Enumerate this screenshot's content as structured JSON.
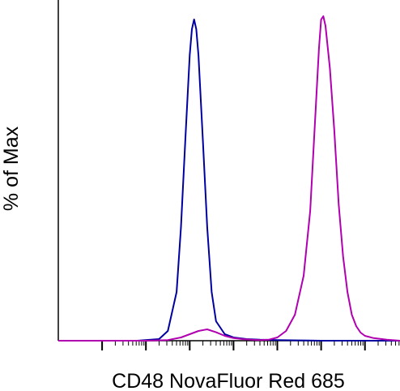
{
  "chart_data": {
    "type": "line",
    "title": "",
    "xlabel": "CD48 NovaFluor Red 685",
    "ylabel": "% of Max",
    "xscale": "log",
    "xlim": [
      -3,
      4.8
    ],
    "ylim": [
      0,
      100
    ],
    "grid": false,
    "legend": "none",
    "series": [
      {
        "color": "#0000a0",
        "x": [
          -3,
          -1.2,
          -0.7,
          -0.5,
          -0.3,
          -0.2,
          -0.1,
          0,
          0.05,
          0.1,
          0.15,
          0.2,
          0.3,
          0.4,
          0.5,
          0.6,
          0.8,
          1.0,
          1.3,
          1.6,
          2.0,
          2.5,
          3.0,
          3.5,
          4.0,
          4.8
        ],
        "y": [
          0,
          0,
          0.5,
          3,
          15,
          35,
          62,
          88,
          96,
          99,
          96,
          88,
          62,
          35,
          15,
          6,
          2,
          1,
          0.5,
          0.3,
          0.2,
          0.1,
          0,
          0,
          0,
          0
        ]
      },
      {
        "color": "#b000b0",
        "x": [
          -3,
          -1.0,
          -0.5,
          -0.2,
          0,
          0.2,
          0.4,
          0.6,
          0.8,
          1.0,
          1.2,
          1.4,
          1.6,
          1.8,
          2.0,
          2.2,
          2.4,
          2.6,
          2.75,
          2.85,
          2.95,
          3.0,
          3.05,
          3.1,
          3.2,
          3.3,
          3.4,
          3.5,
          3.6,
          3.7,
          3.8,
          3.9,
          4.0,
          4.2,
          4.5,
          4.8
        ],
        "y": [
          0,
          0,
          0.2,
          1,
          2,
          3,
          3.5,
          2.6,
          1.5,
          0.8,
          0.5,
          0.3,
          0.2,
          0.3,
          1,
          3,
          8,
          20,
          40,
          65,
          90,
          99,
          100,
          97,
          84,
          65,
          42,
          26,
          15,
          8,
          4.5,
          2.5,
          1.5,
          0.8,
          0.3,
          0
        ]
      }
    ]
  }
}
